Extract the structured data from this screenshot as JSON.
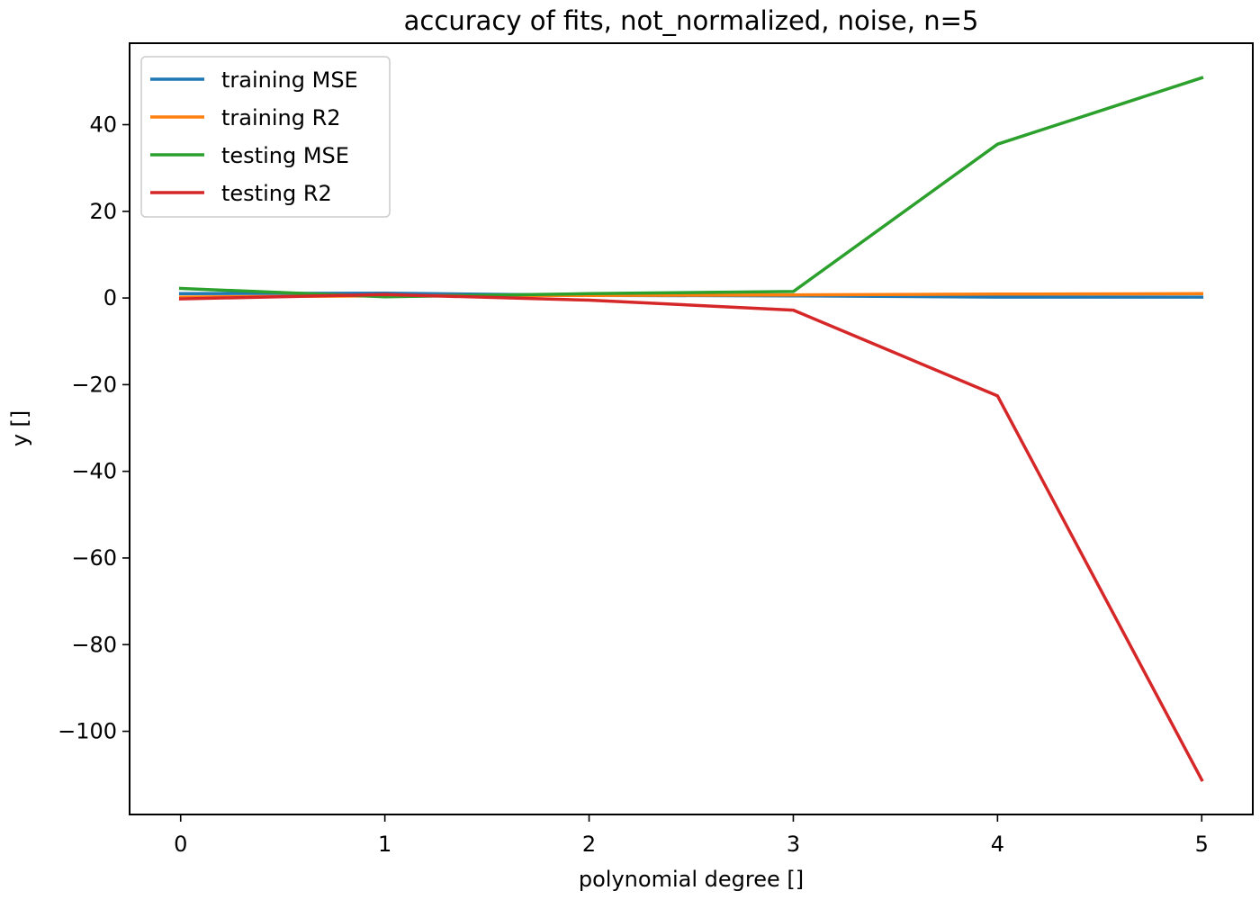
{
  "chart_data": {
    "type": "line",
    "title": "accuracy of fits, not_normalized, noise, n=5",
    "xlabel": "polynomial degree []",
    "ylabel": "y []",
    "x": [
      0,
      1,
      2,
      3,
      4,
      5
    ],
    "xticks": [
      "0",
      "1",
      "2",
      "3",
      "4",
      "5"
    ],
    "yticks": [
      "−100",
      "−80",
      "−60",
      "−40",
      "−20",
      "0",
      "20",
      "40"
    ],
    "ytick_values": [
      -100,
      -80,
      -60,
      -40,
      -20,
      0,
      20,
      40
    ],
    "xlim": [
      -0.25,
      5.25
    ],
    "ylim": [
      -119.2,
      58.8
    ],
    "grid": false,
    "legend_position": "top-left",
    "series": [
      {
        "name": "training MSE",
        "color": "#1f77b4",
        "values": [
          1.0,
          1.1,
          0.6,
          0.5,
          0.2,
          0.2
        ]
      },
      {
        "name": "training R2",
        "color": "#ff7f0e",
        "values": [
          0.2,
          0.5,
          0.6,
          0.7,
          0.9,
          1.0
        ]
      },
      {
        "name": "testing MSE",
        "color": "#2ca02c",
        "values": [
          2.2,
          0.3,
          1.0,
          1.5,
          35.5,
          50.8
        ]
      },
      {
        "name": "testing R2",
        "color": "#d62728",
        "values": [
          -0.2,
          0.8,
          -0.5,
          -2.8,
          -22.6,
          -111.2
        ]
      }
    ]
  }
}
